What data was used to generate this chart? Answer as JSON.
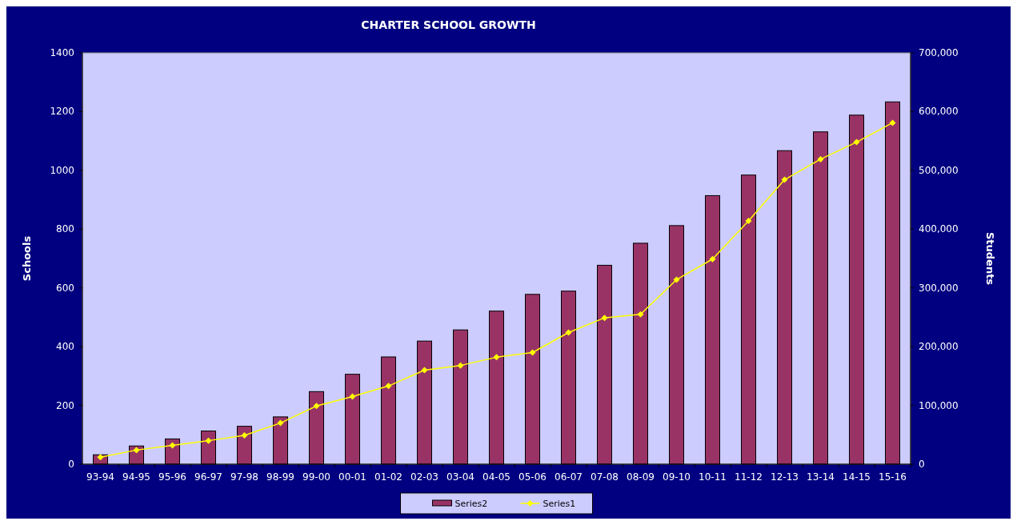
{
  "chart_data": {
    "type": "bar",
    "title": "CHARTER SCHOOL GROWTH",
    "ylabel": "Schools",
    "y2label": "Students",
    "categories": [
      "93-94",
      "94-95",
      "95-96",
      "96-97",
      "97-98",
      "98-99",
      "99-00",
      "00-01",
      "01-02",
      "02-03",
      "03-04",
      "04-05",
      "05-06",
      "06-07",
      "07-08",
      "08-09",
      "09-10",
      "10-11",
      "11-12",
      "12-13",
      "13-14",
      "14-15",
      "15-16"
    ],
    "series": [
      {
        "name": "Series2",
        "color": "#993366",
        "values": [
          32,
          62,
          86,
          113,
          129,
          161,
          247,
          306,
          365,
          419,
          457,
          521,
          578,
          589,
          677,
          752,
          812,
          914,
          984,
          1067,
          1131,
          1188,
          1233
        ]
      },
      {
        "name": "Series1",
        "type": "line",
        "axis": "y2",
        "color": "#ffff00",
        "marker": "diamond",
        "values": [
          12000,
          24000,
          32000,
          40000,
          49000,
          70000,
          99000,
          115000,
          133000,
          160000,
          168000,
          182000,
          190000,
          224000,
          249000,
          255000,
          314000,
          349000,
          414000,
          484000,
          519000,
          548000,
          581000
        ]
      }
    ],
    "ylim": [
      0,
      1400
    ],
    "yticks": [
      0,
      200,
      400,
      600,
      800,
      1000,
      1200,
      1400
    ],
    "y2lim": [
      0,
      700000
    ],
    "y2ticks": [
      {
        "value": 0,
        "label": "0"
      },
      {
        "value": 100000,
        "label": "100,000"
      },
      {
        "value": 200000,
        "label": "200,000"
      },
      {
        "value": 300000,
        "label": "300,000"
      },
      {
        "value": 400000,
        "label": "400,000"
      },
      {
        "value": 500000,
        "label": "500,000"
      },
      {
        "value": 600000,
        "label": "600,000"
      },
      {
        "value": 700000,
        "label": "700,000"
      }
    ],
    "grid": false,
    "legend": "bottom"
  }
}
